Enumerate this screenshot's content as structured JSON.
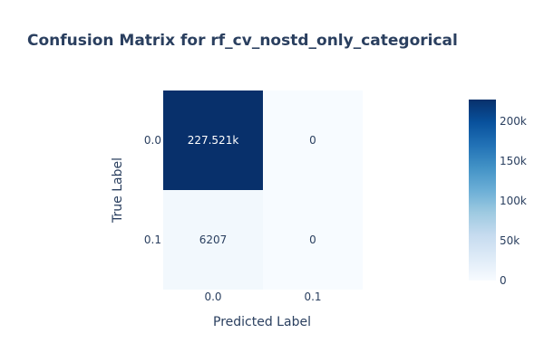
{
  "chart_data": {
    "type": "heatmap",
    "title": "Confusion Matrix for rf_cv_nostd_only_categorical",
    "xlabel": "Predicted Label",
    "ylabel": "True Label",
    "x_categories": [
      "0.0",
      "0.1"
    ],
    "y_categories": [
      "0.0",
      "0.1"
    ],
    "z": [
      [
        227521,
        0
      ],
      [
        6207,
        0
      ]
    ],
    "cell_text": [
      [
        "227.521k",
        "0"
      ],
      [
        "6207",
        "0"
      ]
    ],
    "colorscale": "Blues",
    "colorscale_stops": [
      "#f7fbff",
      "#deebf7",
      "#c6dbef",
      "#9ecae1",
      "#6baed6",
      "#4292c6",
      "#2171b5",
      "#08519c",
      "#08306b"
    ],
    "zmin": 0,
    "zmax": 227521,
    "colorbar_ticks": [
      {
        "value": 0,
        "label": "0"
      },
      {
        "value": 50000,
        "label": "50k"
      },
      {
        "value": 100000,
        "label": "100k"
      },
      {
        "value": 150000,
        "label": "150k"
      },
      {
        "value": 200000,
        "label": "200k"
      }
    ],
    "text_color_light": "#ffffff",
    "text_color_dark": "#2a3f5f"
  }
}
